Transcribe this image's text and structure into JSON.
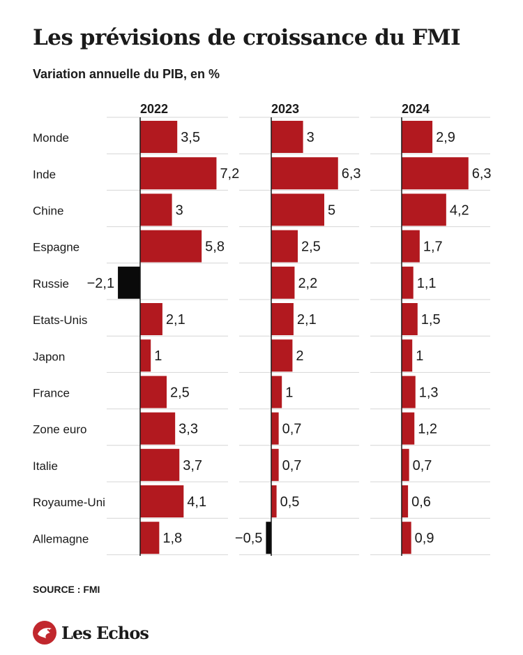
{
  "title": "Les prévisions de croissance du FMI",
  "subtitle": "Variation annuelle du PIB, en %",
  "source": "SOURCE : FMI",
  "brand": {
    "name": "Les Echos",
    "icon": "les-echos-logo-icon"
  },
  "colors": {
    "positive": "#b2191f",
    "negative": "#0a0a0a",
    "grid": "#d6d6d6",
    "axis": "#1a1a1a"
  },
  "chart_data": {
    "type": "bar",
    "orientation": "horizontal",
    "categories": [
      "Monde",
      "Inde",
      "Chine",
      "Espagne",
      "Russie",
      "Etats-Unis",
      "Japon",
      "France",
      "Zone euro",
      "Italie",
      "Royaume-Uni",
      "Allemagne"
    ],
    "series": [
      {
        "name": "2022",
        "values": [
          3.5,
          7.2,
          3,
          5.8,
          -2.1,
          2.1,
          1,
          2.5,
          3.3,
          3.7,
          4.1,
          1.8
        ],
        "labels": [
          "3,5",
          "7,2",
          "3",
          "5,8",
          "−2,1",
          "2,1",
          "1",
          "2,5",
          "3,3",
          "3,7",
          "4,1",
          "1,8"
        ]
      },
      {
        "name": "2023",
        "values": [
          3,
          6.3,
          5,
          2.5,
          2.2,
          2.1,
          2,
          1,
          0.7,
          0.7,
          0.5,
          -0.5
        ],
        "labels": [
          "3",
          "6,3",
          "5",
          "2,5",
          "2,2",
          "2,1",
          "2",
          "1",
          "0,7",
          "0,7",
          "0,5",
          "−0,5"
        ]
      },
      {
        "name": "2024",
        "values": [
          2.9,
          6.3,
          4.2,
          1.7,
          1.1,
          1.5,
          1,
          1.3,
          1.2,
          0.7,
          0.6,
          0.9
        ],
        "labels": [
          "2,9",
          "6,3",
          "4,2",
          "1,7",
          "1,1",
          "1,5",
          "1",
          "1,3",
          "1,2",
          "0,7",
          "0,6",
          "0,9"
        ]
      }
    ],
    "grid": true,
    "legend": "none"
  }
}
